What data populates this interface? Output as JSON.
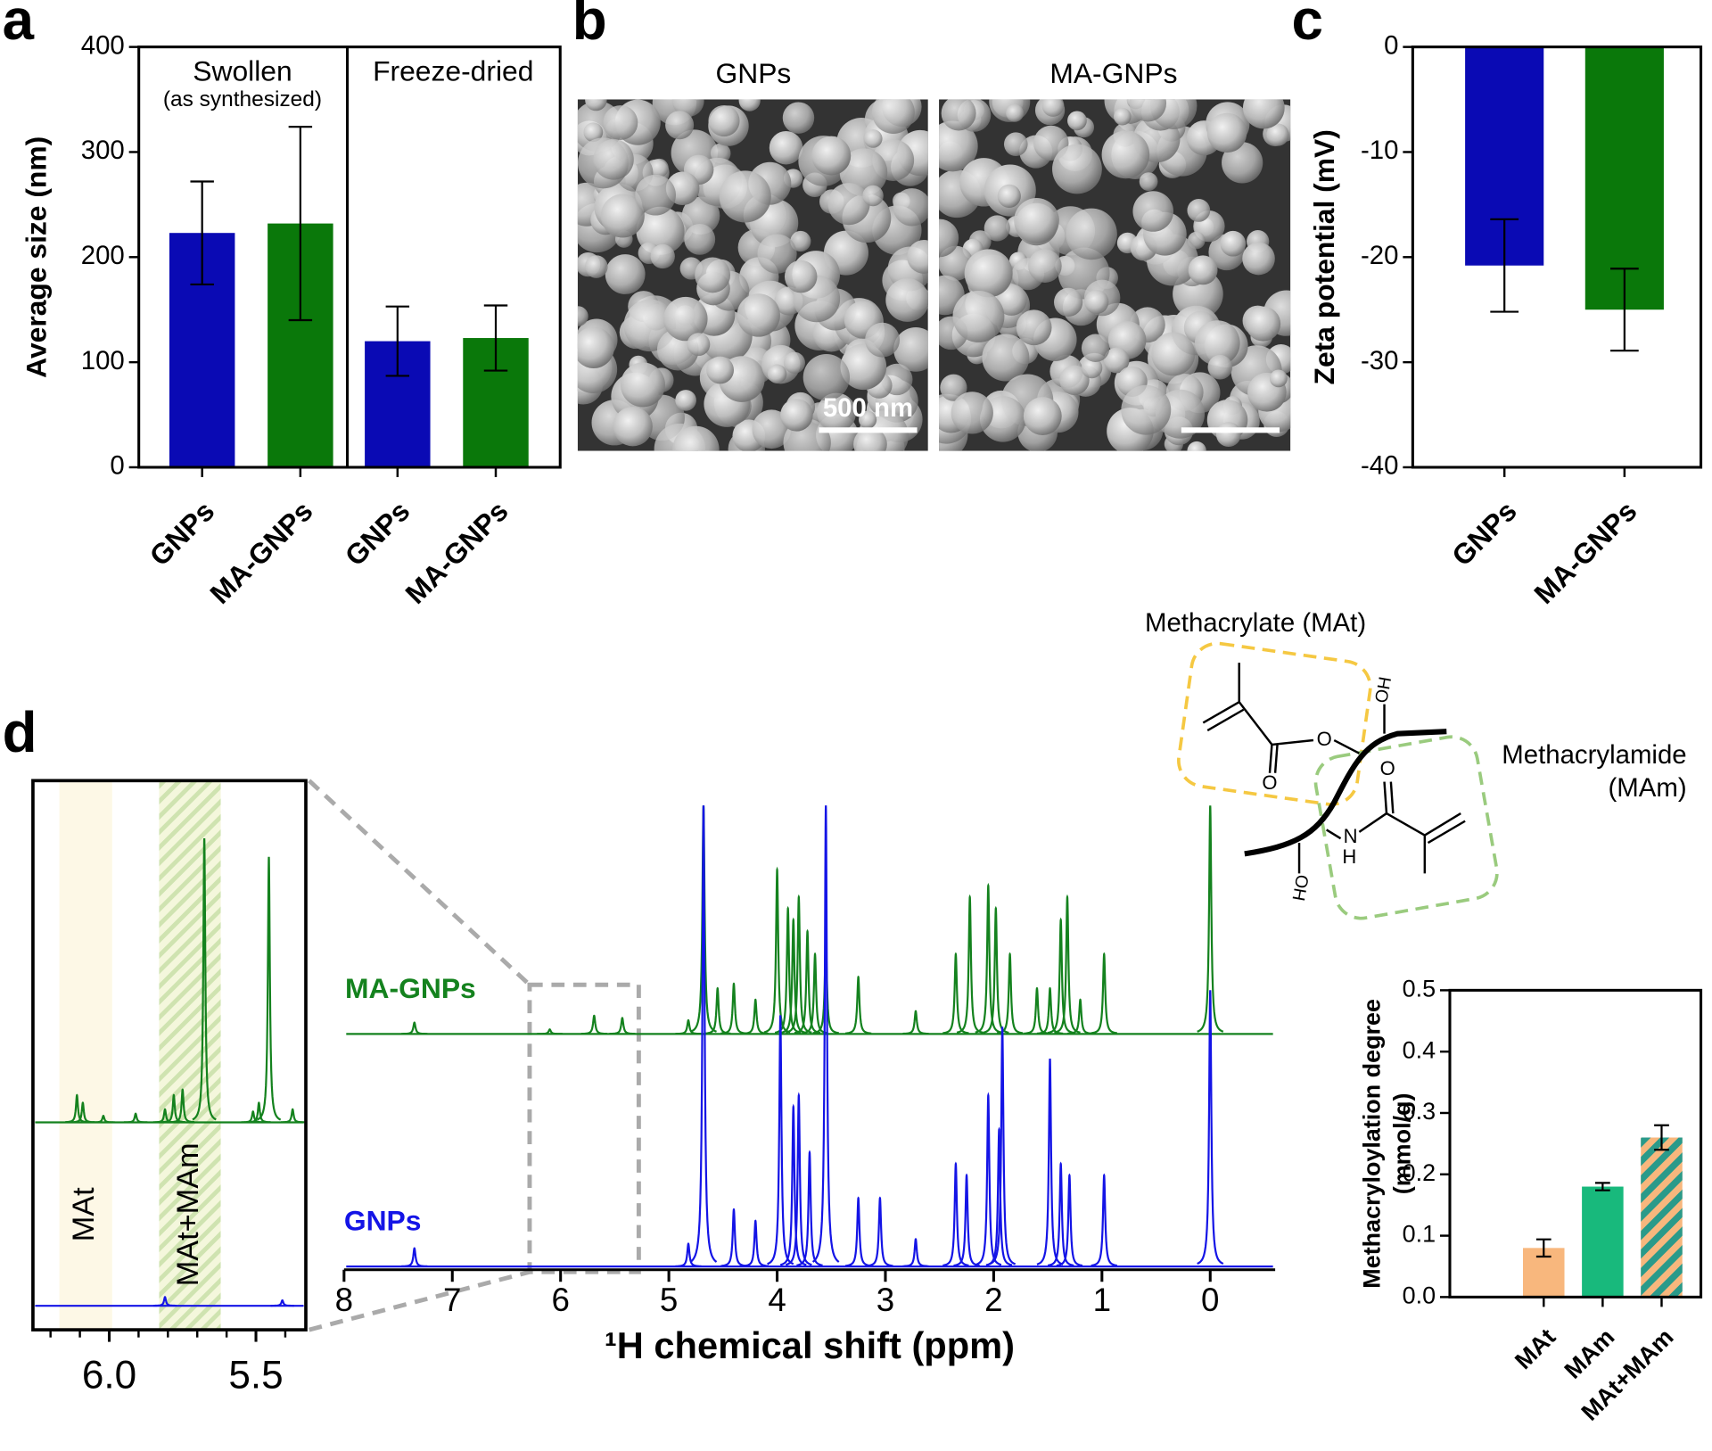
{
  "panels": [
    "a",
    "b",
    "c",
    "d"
  ],
  "sem": {
    "titles": [
      "GNPs",
      "MA-GNPs"
    ],
    "scale_bar": "500 nm"
  },
  "structure": {
    "mat_label": "Methacrylate (MAt)",
    "mam_label": "Methacrylamide",
    "mam_abbr": "(MAm)",
    "atoms": [
      "O",
      "O",
      "OH",
      "N",
      "H",
      "O",
      "OH"
    ]
  },
  "chart_data": [
    {
      "type": "bar",
      "ylabel": "Average size (nm)",
      "groups": [
        {
          "label": "Swollen",
          "sublabel": "(as synthesized)"
        },
        {
          "label": "Freeze-dried"
        }
      ],
      "categories": [
        "GNPs",
        "MA-GNPs",
        "GNPs",
        "MA-GNPs"
      ],
      "values": [
        223,
        232,
        120,
        123
      ],
      "errors": [
        49,
        92,
        33,
        31
      ],
      "colors": [
        "#0a0ab4",
        "#0a780a",
        "#0a0ab4",
        "#0a780a"
      ],
      "ylim": [
        0,
        400
      ],
      "yticks": [
        0,
        100,
        200,
        300,
        400
      ]
    },
    {
      "type": "bar",
      "ylabel": "Zeta potential (mV)",
      "categories": [
        "GNPs",
        "MA-GNPs"
      ],
      "values": [
        -20.8,
        -25
      ],
      "errors": [
        4.4,
        3.9
      ],
      "colors": [
        "#0a0ab4",
        "#0a780a"
      ],
      "ylim": [
        -40,
        0
      ],
      "yticks": [
        0,
        -10,
        -20,
        -30,
        -40
      ]
    },
    {
      "type": "spectrum",
      "xlabel": "¹H chemical shift (ppm)",
      "xlim": [
        8,
        -0.6
      ],
      "xticks": [
        8,
        7,
        6,
        5,
        4,
        3,
        2,
        1,
        0
      ],
      "series": [
        {
          "name": "MA-GNPs",
          "color": "#14821e",
          "x": [
            7.35,
            6.1,
            5.69,
            5.43,
            4.82,
            4.68,
            4.55,
            4.4,
            4.2,
            4.0,
            3.9,
            3.85,
            3.8,
            3.72,
            3.65,
            3.55,
            3.25,
            2.72,
            2.35,
            2.22,
            2.05,
            1.98,
            1.85,
            1.6,
            1.48,
            1.38,
            1.32,
            1.2,
            0.98,
            0.0
          ],
          "values": [
            5,
            2,
            8,
            7,
            6,
            100,
            20,
            22,
            15,
            72,
            55,
            50,
            60,
            45,
            35,
            40,
            25,
            10,
            35,
            60,
            65,
            55,
            35,
            20,
            20,
            50,
            60,
            15,
            35,
            100
          ]
        },
        {
          "name": "GNPs",
          "color": "#1414e6",
          "x": [
            7.35,
            4.82,
            4.68,
            4.4,
            4.2,
            3.97,
            3.85,
            3.8,
            3.7,
            3.55,
            3.25,
            3.05,
            2.72,
            2.35,
            2.25,
            2.05,
            1.95,
            1.92,
            1.48,
            1.38,
            1.3,
            0.98,
            0.0
          ],
          "values": [
            8,
            10,
            202,
            25,
            20,
            110,
            70,
            75,
            50,
            202,
            30,
            30,
            12,
            45,
            40,
            75,
            60,
            105,
            91,
            45,
            40,
            40,
            121
          ]
        }
      ]
    },
    {
      "type": "spectrum",
      "xlim": [
        6.26,
        5.33
      ],
      "xticks": [
        {
          "value": 6.0,
          "label": "6.0"
        },
        5.5
      ],
      "xminor": [
        6.2,
        6.1,
        5.9,
        5.8,
        5.7,
        5.6,
        5.4
      ],
      "regions": [
        {
          "label": "MAt",
          "range": [
            6.17,
            5.99
          ]
        },
        {
          "label": "MAt+MAm",
          "range": [
            5.83,
            5.62
          ]
        }
      ],
      "series": [
        {
          "color": "#14821e",
          "x": [
            6.11,
            6.09,
            6.02,
            5.91,
            5.81,
            5.78,
            5.75,
            5.676,
            5.51,
            5.49,
            5.456,
            5.375
          ],
          "values": [
            25,
            18,
            6,
            8,
            12,
            25,
            30,
            260,
            10,
            18,
            243,
            12
          ]
        },
        {
          "color": "#1414e6",
          "x": [
            5.81,
            5.41
          ],
          "values": [
            8,
            5
          ]
        }
      ]
    },
    {
      "type": "bar",
      "ylabel": "Methacryloylation degree",
      "ylabel2": "(mmol/g)",
      "categories": [
        "MAt",
        "MAm",
        "MAt+MAm"
      ],
      "values": [
        0.08,
        0.18,
        0.26
      ],
      "errors": [
        0.014,
        0.006,
        0.02
      ],
      "colors": [
        "#f8b77d",
        "#18b97c",
        "#f8b77d"
      ],
      "hatched": [
        false,
        false,
        true
      ],
      "hatch_color": "#2a9a8a",
      "ylim": [
        0,
        0.5
      ],
      "yticks": [
        {
          "value": 0,
          "label": "0.0"
        },
        0.1,
        0.2,
        0.3,
        0.4,
        0.5
      ]
    }
  ]
}
